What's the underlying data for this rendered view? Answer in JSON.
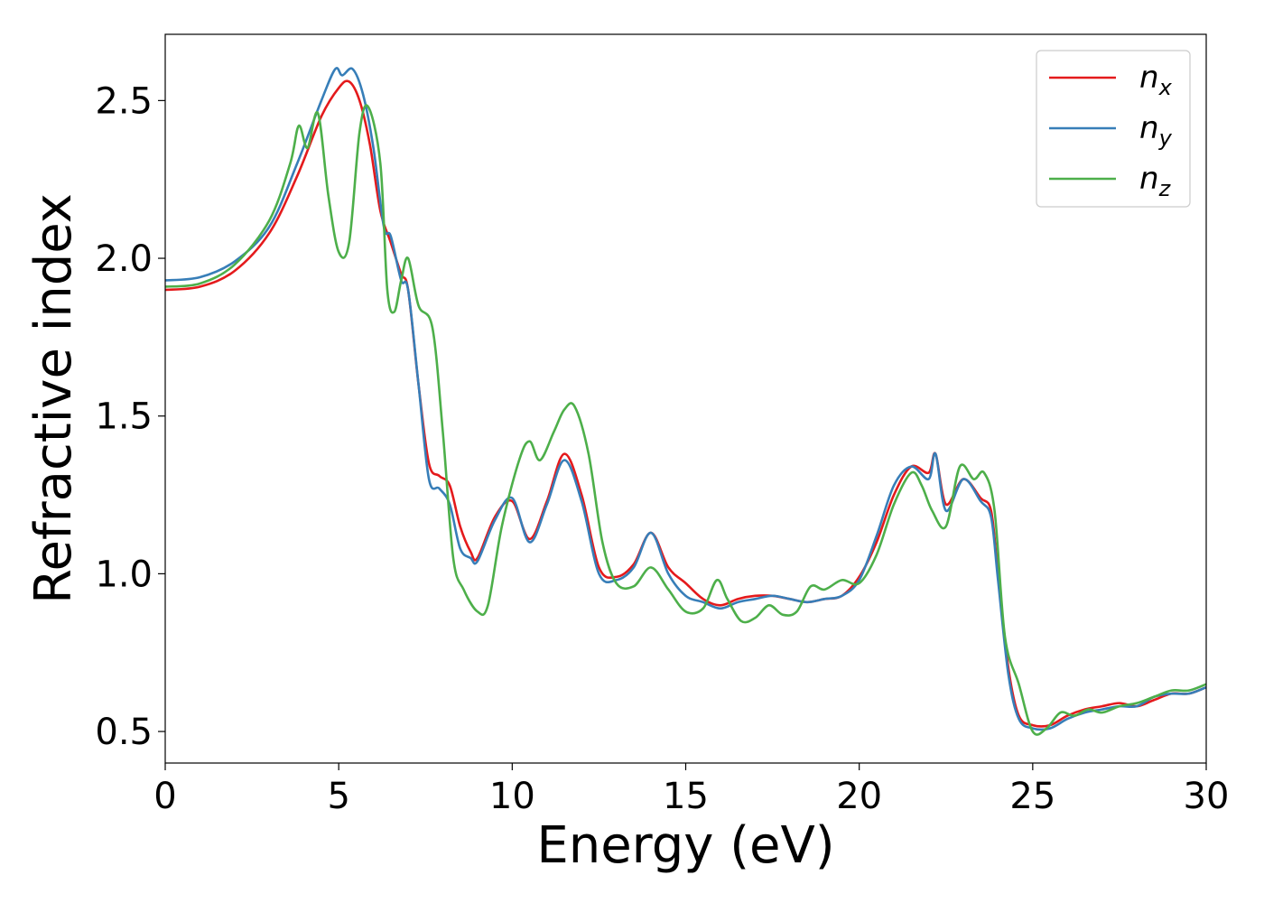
{
  "chart_data": {
    "type": "line",
    "title": "",
    "xlabel": "Energy (eV)",
    "ylabel": "Refractive index",
    "xlim": [
      0,
      30
    ],
    "ylim": [
      0.4,
      2.71
    ],
    "xticks": [
      0,
      5,
      10,
      15,
      20,
      25,
      30
    ],
    "yticks": [
      0.5,
      1.0,
      1.5,
      2.0,
      2.5
    ],
    "xtick_labels": [
      "0",
      "5",
      "10",
      "15",
      "20",
      "25",
      "30"
    ],
    "ytick_labels": [
      "0.5",
      "1.0",
      "1.5",
      "2.0",
      "2.5"
    ],
    "grid": false,
    "legend_position": "top-right",
    "series": [
      {
        "name": "n",
        "subscript": "x",
        "color": "#e41a1c",
        "points": [
          [
            0,
            1.9
          ],
          [
            1,
            1.91
          ],
          [
            2,
            1.96
          ],
          [
            3,
            2.08
          ],
          [
            3.8,
            2.26
          ],
          [
            4.5,
            2.45
          ],
          [
            5,
            2.54
          ],
          [
            5.3,
            2.56
          ],
          [
            5.6,
            2.5
          ],
          [
            5.9,
            2.36
          ],
          [
            6.2,
            2.15
          ],
          [
            6.5,
            2.05
          ],
          [
            6.8,
            1.95
          ],
          [
            7.0,
            1.9
          ],
          [
            7.3,
            1.6
          ],
          [
            7.6,
            1.35
          ],
          [
            7.9,
            1.31
          ],
          [
            8.2,
            1.28
          ],
          [
            8.5,
            1.15
          ],
          [
            8.8,
            1.07
          ],
          [
            9.0,
            1.05
          ],
          [
            9.5,
            1.18
          ],
          [
            10.0,
            1.23
          ],
          [
            10.5,
            1.11
          ],
          [
            11.0,
            1.23
          ],
          [
            11.5,
            1.38
          ],
          [
            12.0,
            1.25
          ],
          [
            12.5,
            1.02
          ],
          [
            13.0,
            0.99
          ],
          [
            13.5,
            1.03
          ],
          [
            14.0,
            1.13
          ],
          [
            14.5,
            1.02
          ],
          [
            15.0,
            0.97
          ],
          [
            15.5,
            0.92
          ],
          [
            16.0,
            0.9
          ],
          [
            16.5,
            0.92
          ],
          [
            17.0,
            0.93
          ],
          [
            17.5,
            0.93
          ],
          [
            18.0,
            0.92
          ],
          [
            18.5,
            0.91
          ],
          [
            19.0,
            0.92
          ],
          [
            19.5,
            0.93
          ],
          [
            20.0,
            0.99
          ],
          [
            20.5,
            1.1
          ],
          [
            21.0,
            1.25
          ],
          [
            21.5,
            1.34
          ],
          [
            22.0,
            1.32
          ],
          [
            22.2,
            1.38
          ],
          [
            22.5,
            1.22
          ],
          [
            23.0,
            1.3
          ],
          [
            23.5,
            1.24
          ],
          [
            23.8,
            1.2
          ],
          [
            24.0,
            1.0
          ],
          [
            24.3,
            0.7
          ],
          [
            24.6,
            0.55
          ],
          [
            25.0,
            0.52
          ],
          [
            25.5,
            0.52
          ],
          [
            26.0,
            0.55
          ],
          [
            26.5,
            0.57
          ],
          [
            27.0,
            0.58
          ],
          [
            27.5,
            0.59
          ],
          [
            28.0,
            0.58
          ],
          [
            28.5,
            0.6
          ],
          [
            29.0,
            0.62
          ],
          [
            29.5,
            0.62
          ],
          [
            30.0,
            0.64
          ]
        ]
      },
      {
        "name": "n",
        "subscript": "y",
        "color": "#377eb8",
        "points": [
          [
            0,
            1.93
          ],
          [
            1,
            1.94
          ],
          [
            2,
            1.99
          ],
          [
            3,
            2.1
          ],
          [
            3.8,
            2.3
          ],
          [
            4.5,
            2.5
          ],
          [
            4.9,
            2.6
          ],
          [
            5.1,
            2.58
          ],
          [
            5.4,
            2.6
          ],
          [
            5.7,
            2.52
          ],
          [
            6.0,
            2.35
          ],
          [
            6.3,
            2.1
          ],
          [
            6.5,
            2.07
          ],
          [
            6.8,
            1.93
          ],
          [
            7.0,
            1.9
          ],
          [
            7.3,
            1.6
          ],
          [
            7.6,
            1.3
          ],
          [
            7.9,
            1.27
          ],
          [
            8.2,
            1.22
          ],
          [
            8.5,
            1.08
          ],
          [
            8.8,
            1.05
          ],
          [
            9.0,
            1.04
          ],
          [
            9.5,
            1.17
          ],
          [
            10.0,
            1.24
          ],
          [
            10.5,
            1.1
          ],
          [
            11.0,
            1.22
          ],
          [
            11.5,
            1.36
          ],
          [
            12.0,
            1.23
          ],
          [
            12.5,
            1.0
          ],
          [
            13.0,
            0.98
          ],
          [
            13.5,
            1.02
          ],
          [
            14.0,
            1.13
          ],
          [
            14.5,
            1.0
          ],
          [
            15.0,
            0.93
          ],
          [
            15.5,
            0.91
          ],
          [
            16.0,
            0.89
          ],
          [
            16.5,
            0.91
          ],
          [
            17.0,
            0.92
          ],
          [
            17.5,
            0.93
          ],
          [
            18.0,
            0.92
          ],
          [
            18.5,
            0.91
          ],
          [
            19.0,
            0.92
          ],
          [
            19.5,
            0.93
          ],
          [
            20.0,
            0.98
          ],
          [
            20.5,
            1.12
          ],
          [
            21.0,
            1.28
          ],
          [
            21.5,
            1.34
          ],
          [
            22.0,
            1.3
          ],
          [
            22.2,
            1.38
          ],
          [
            22.5,
            1.2
          ],
          [
            23.0,
            1.3
          ],
          [
            23.5,
            1.23
          ],
          [
            23.8,
            1.18
          ],
          [
            24.0,
            0.98
          ],
          [
            24.3,
            0.68
          ],
          [
            24.6,
            0.54
          ],
          [
            25.0,
            0.51
          ],
          [
            25.5,
            0.51
          ],
          [
            26.0,
            0.54
          ],
          [
            26.5,
            0.56
          ],
          [
            27.0,
            0.57
          ],
          [
            27.5,
            0.58
          ],
          [
            28.0,
            0.58
          ],
          [
            28.5,
            0.61
          ],
          [
            29.0,
            0.62
          ],
          [
            29.5,
            0.62
          ],
          [
            30.0,
            0.64
          ]
        ]
      },
      {
        "name": "n",
        "subscript": "z",
        "color": "#4daf4a",
        "points": [
          [
            0,
            1.91
          ],
          [
            1,
            1.92
          ],
          [
            2,
            1.98
          ],
          [
            3,
            2.12
          ],
          [
            3.6,
            2.3
          ],
          [
            3.85,
            2.42
          ],
          [
            4.1,
            2.35
          ],
          [
            4.4,
            2.46
          ],
          [
            4.7,
            2.2
          ],
          [
            5.0,
            2.02
          ],
          [
            5.3,
            2.05
          ],
          [
            5.6,
            2.4
          ],
          [
            5.85,
            2.48
          ],
          [
            6.2,
            2.3
          ],
          [
            6.4,
            1.9
          ],
          [
            6.6,
            1.83
          ],
          [
            6.8,
            1.93
          ],
          [
            7.0,
            2.0
          ],
          [
            7.3,
            1.85
          ],
          [
            7.7,
            1.78
          ],
          [
            8.0,
            1.45
          ],
          [
            8.3,
            1.05
          ],
          [
            8.6,
            0.95
          ],
          [
            9.0,
            0.88
          ],
          [
            9.3,
            0.9
          ],
          [
            9.7,
            1.15
          ],
          [
            10.2,
            1.36
          ],
          [
            10.5,
            1.42
          ],
          [
            10.8,
            1.36
          ],
          [
            11.2,
            1.45
          ],
          [
            11.5,
            1.52
          ],
          [
            11.8,
            1.53
          ],
          [
            12.2,
            1.38
          ],
          [
            12.6,
            1.1
          ],
          [
            13.0,
            0.97
          ],
          [
            13.5,
            0.96
          ],
          [
            14.0,
            1.02
          ],
          [
            14.5,
            0.95
          ],
          [
            15.0,
            0.88
          ],
          [
            15.5,
            0.89
          ],
          [
            15.9,
            0.98
          ],
          [
            16.2,
            0.92
          ],
          [
            16.6,
            0.85
          ],
          [
            17.0,
            0.86
          ],
          [
            17.4,
            0.9
          ],
          [
            17.8,
            0.87
          ],
          [
            18.2,
            0.88
          ],
          [
            18.6,
            0.96
          ],
          [
            19.0,
            0.95
          ],
          [
            19.5,
            0.98
          ],
          [
            20.0,
            0.97
          ],
          [
            20.5,
            1.06
          ],
          [
            21.0,
            1.22
          ],
          [
            21.5,
            1.32
          ],
          [
            21.8,
            1.28
          ],
          [
            22.1,
            1.2
          ],
          [
            22.5,
            1.15
          ],
          [
            22.9,
            1.34
          ],
          [
            23.3,
            1.3
          ],
          [
            23.6,
            1.32
          ],
          [
            23.9,
            1.2
          ],
          [
            24.2,
            0.8
          ],
          [
            24.6,
            0.65
          ],
          [
            25.0,
            0.5
          ],
          [
            25.4,
            0.51
          ],
          [
            25.8,
            0.56
          ],
          [
            26.2,
            0.55
          ],
          [
            26.6,
            0.57
          ],
          [
            27.0,
            0.56
          ],
          [
            27.5,
            0.58
          ],
          [
            28.0,
            0.59
          ],
          [
            28.5,
            0.61
          ],
          [
            29.0,
            0.63
          ],
          [
            29.5,
            0.63
          ],
          [
            30.0,
            0.65
          ]
        ]
      }
    ]
  }
}
